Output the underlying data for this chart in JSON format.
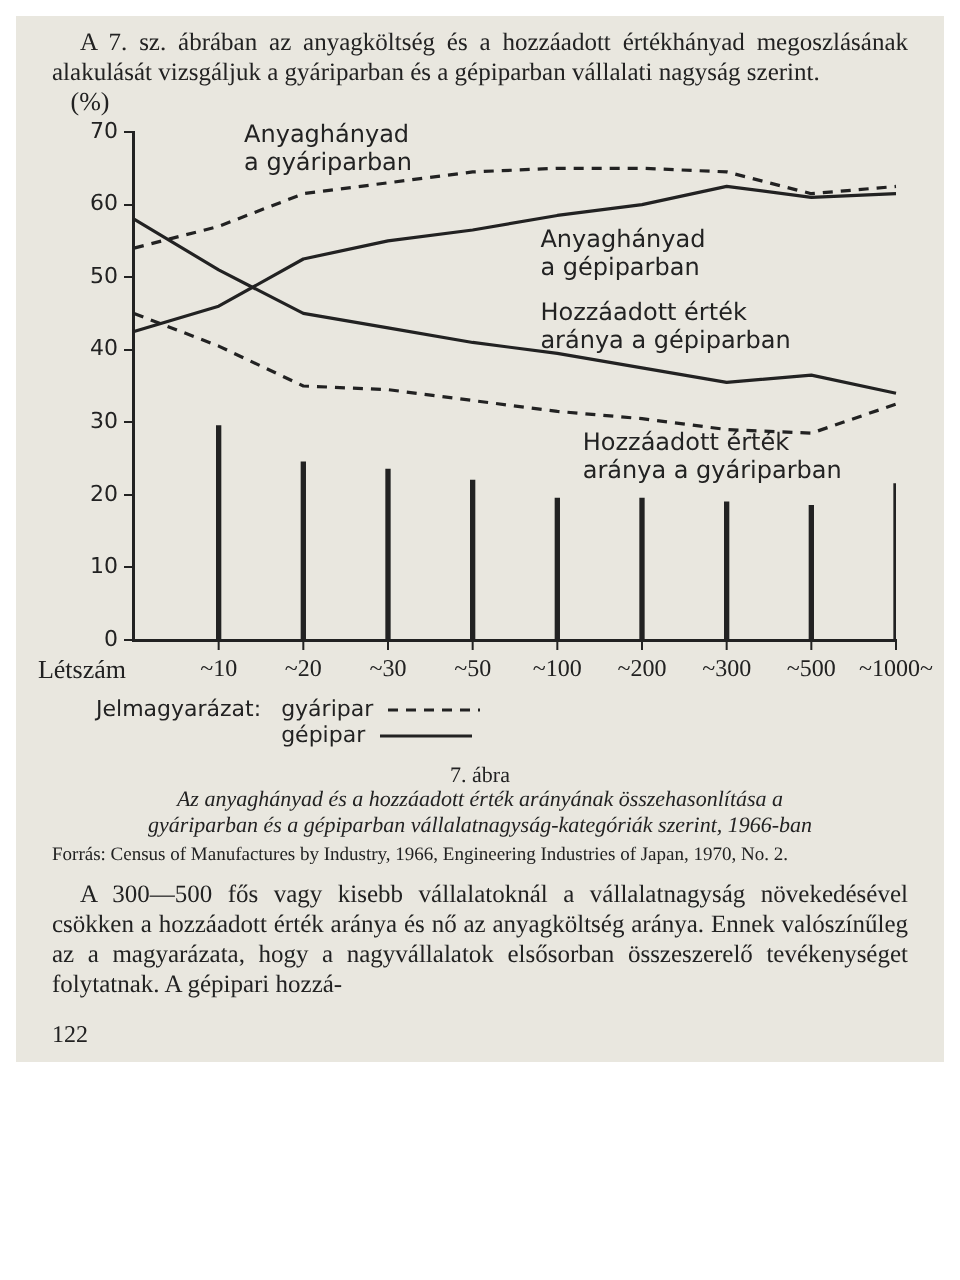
{
  "chart_data": {
    "type": "line",
    "title": "7. ábra",
    "subtitle": "Az anyaghányad és a hozzáadott érték arányának összehasonlítása a gyáriparban és a gépiparban vállalatnagyság-kategóriák szerint, 1966-ban",
    "xlabel": "Létszám",
    "ylabel": "(%)",
    "legend_title": "Jelmagyarázat:",
    "categories": [
      null,
      "~10",
      "~20",
      "~30",
      "~50",
      "~100",
      "~200",
      "~300",
      "~500",
      "~1000~"
    ],
    "ylim": [
      0,
      70
    ],
    "yticks": [
      0,
      10,
      20,
      30,
      40,
      50,
      60,
      70
    ],
    "grid": false,
    "legend": false,
    "marker": "none",
    "series": [
      {
        "name": "Anyaghányad a gyáriparban",
        "color": "#222222",
        "line_style": "dashed",
        "values": [
          54,
          57,
          61.5,
          63,
          64.5,
          65,
          65,
          64.5,
          61.5,
          62.5
        ]
      },
      {
        "name": "Anyaghányad a gépiparban",
        "color": "#222222",
        "line_style": "solid",
        "values": [
          42.5,
          46,
          52.5,
          55,
          56.5,
          58.5,
          60,
          62.5,
          61,
          61.5
        ]
      },
      {
        "name": "Hozzáadott érték aránya a gépiparban",
        "color": "#222222",
        "line_style": "solid",
        "values": [
          58,
          51,
          45,
          43,
          41,
          39.5,
          37.5,
          35.5,
          36.5,
          34
        ]
      },
      {
        "name": "Hozzáadott érték aránya a gyáriparban",
        "color": "#222222",
        "line_style": "dashed",
        "values": [
          45,
          40.5,
          35,
          34.5,
          33,
          31.5,
          30.5,
          29,
          28.5,
          32.5
        ]
      },
      {
        "type": "bar",
        "color": "#222222",
        "values": [
          null,
          29.5,
          24.5,
          23.5,
          22,
          19.5,
          19.5,
          19,
          18.5,
          21.5
        ]
      }
    ],
    "annotations": [
      "A 7. sz. ábrában az anyagköltség és a hozzáadott értékhányad megoszlásának alakulását vizsgáljuk a gyáriparban és a gépiparban vállalati nagyság szerint.",
      "gyáripar",
      "gépipar",
      "Forrás: Census of Manufactures by Industry, 1966, Engineering Industries of Japan, 1970, No. 2.",
      "A 300—500 fős vagy kisebb vállalatoknál a vállalatnagyság növekedésével csökken a hozzáadott érték aránya és nő az anyagköltség aránya. Ennek valószínűleg az a magyarázata, hogy a nagyvállalatok elsősorban összeszerelő tevékenységet folytatnak. A gépipari hozzá-",
      "122"
    ]
  }
}
